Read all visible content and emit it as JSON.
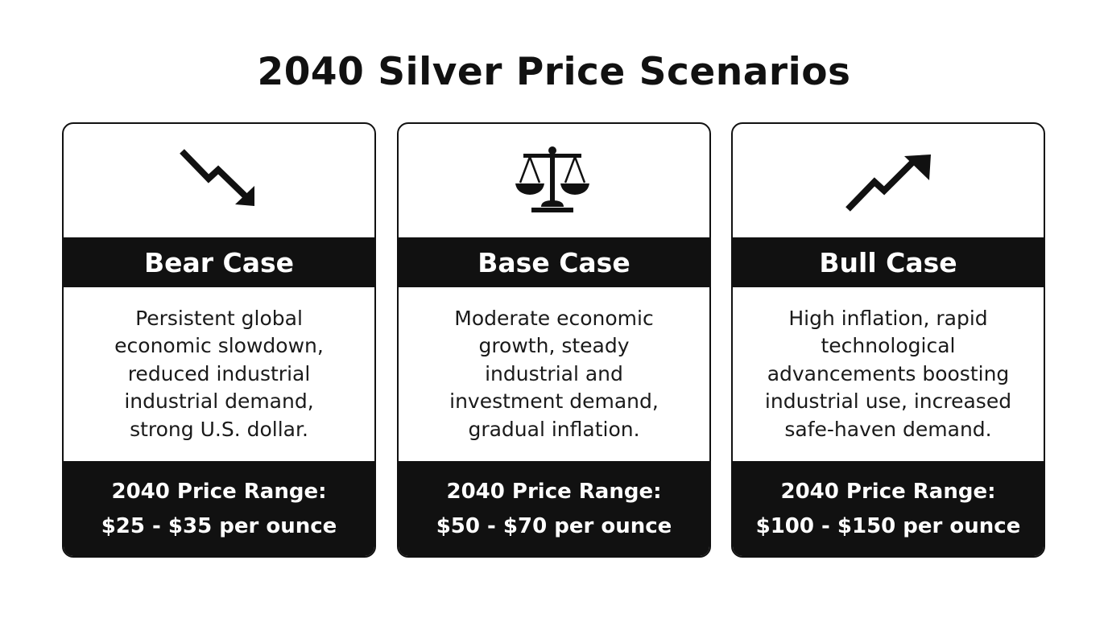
{
  "title": "2040 Silver Price Scenarios",
  "scenarios": [
    {
      "icon": "trend-down-arrow-icon",
      "name": "Bear Case",
      "description": "Persistent global economic slowdown, reduced industrial industrial demand, strong U.S. dollar.",
      "price_label": "2040 Price Range:",
      "price_range": "$25 - $35 per ounce"
    },
    {
      "icon": "balance-scale-icon",
      "name": "Base Case",
      "description": "Moderate economic growth, steady industrial and investment demand, gradual inflation.",
      "price_label": "2040 Price Range:",
      "price_range": "$50 - $70 per ounce"
    },
    {
      "icon": "trend-up-arrow-icon",
      "name": "Bull Case",
      "description": "High inflation, rapid technological advancements boosting industrial use, increased safe-haven demand.",
      "price_label": "2040 Price Range:",
      "price_range": "$100 - $150 per ounce"
    }
  ],
  "colors": {
    "ink": "#111111",
    "background": "#ffffff",
    "band_text": "#ffffff"
  }
}
